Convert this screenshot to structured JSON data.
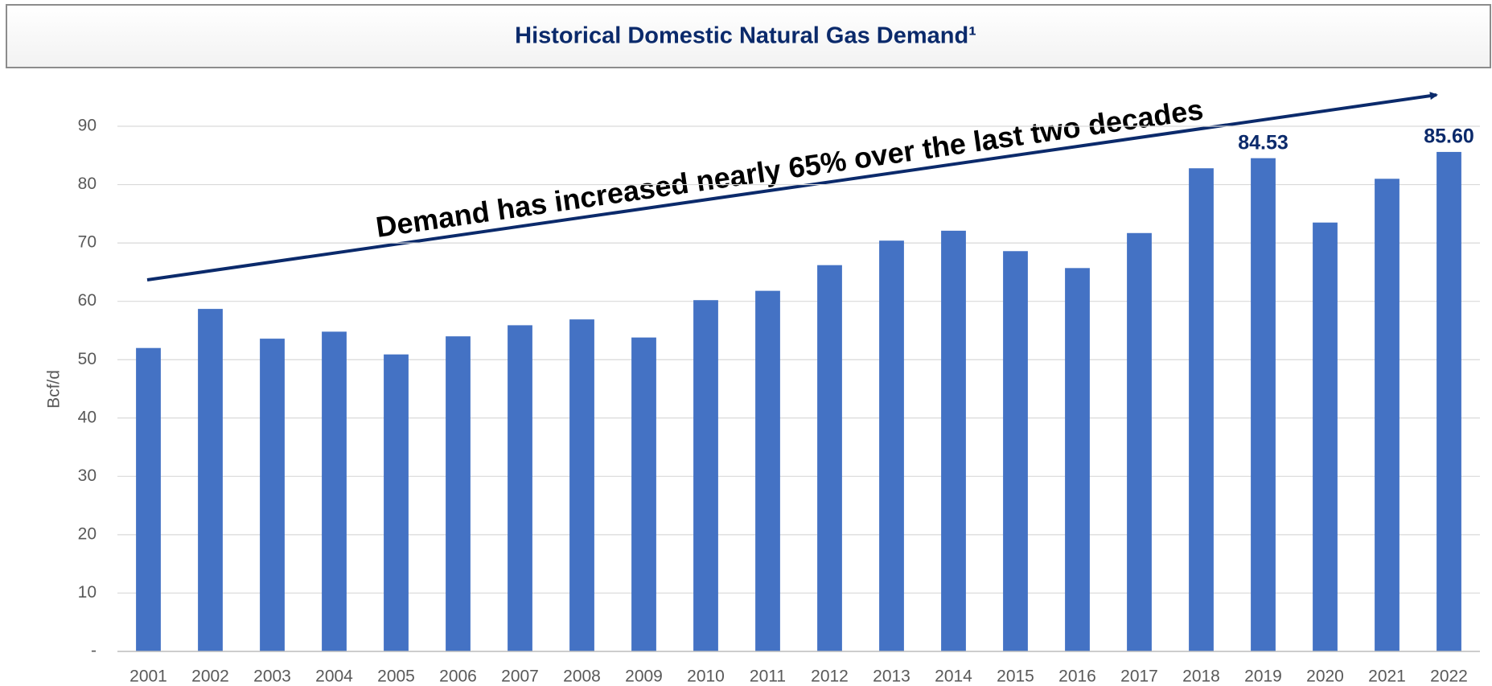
{
  "chart_data": {
    "type": "bar",
    "title": "Historical Domestic Natural Gas Demand¹",
    "y_label": "Bcf/d",
    "annotation": "Demand has increased nearly 65% over the last two decades",
    "categories": [
      "2001",
      "2002",
      "2003",
      "2004",
      "2005",
      "2006",
      "2007",
      "2008",
      "2009",
      "2010",
      "2011",
      "2012",
      "2013",
      "2014",
      "2015",
      "2016",
      "2017",
      "2018",
      "2019",
      "2020",
      "2021",
      "2022"
    ],
    "values": [
      52,
      58.7,
      53.6,
      54.8,
      50.9,
      54.0,
      55.9,
      56.9,
      53.8,
      60.2,
      61.8,
      66.2,
      70.4,
      72.1,
      68.6,
      65.7,
      71.7,
      82.8,
      84.53,
      73.5,
      81.0,
      85.6
    ],
    "value_labels": [
      null,
      null,
      null,
      null,
      null,
      null,
      null,
      null,
      null,
      null,
      null,
      null,
      null,
      null,
      null,
      null,
      null,
      null,
      "84.53",
      null,
      null,
      "85.60"
    ],
    "color": "#4472c4",
    "ylim": [
      0,
      90
    ],
    "yticks": [
      {
        "value": 0,
        "label": "-"
      },
      10,
      20,
      30,
      40,
      50,
      60,
      70,
      80,
      90
    ],
    "grid": true
  }
}
